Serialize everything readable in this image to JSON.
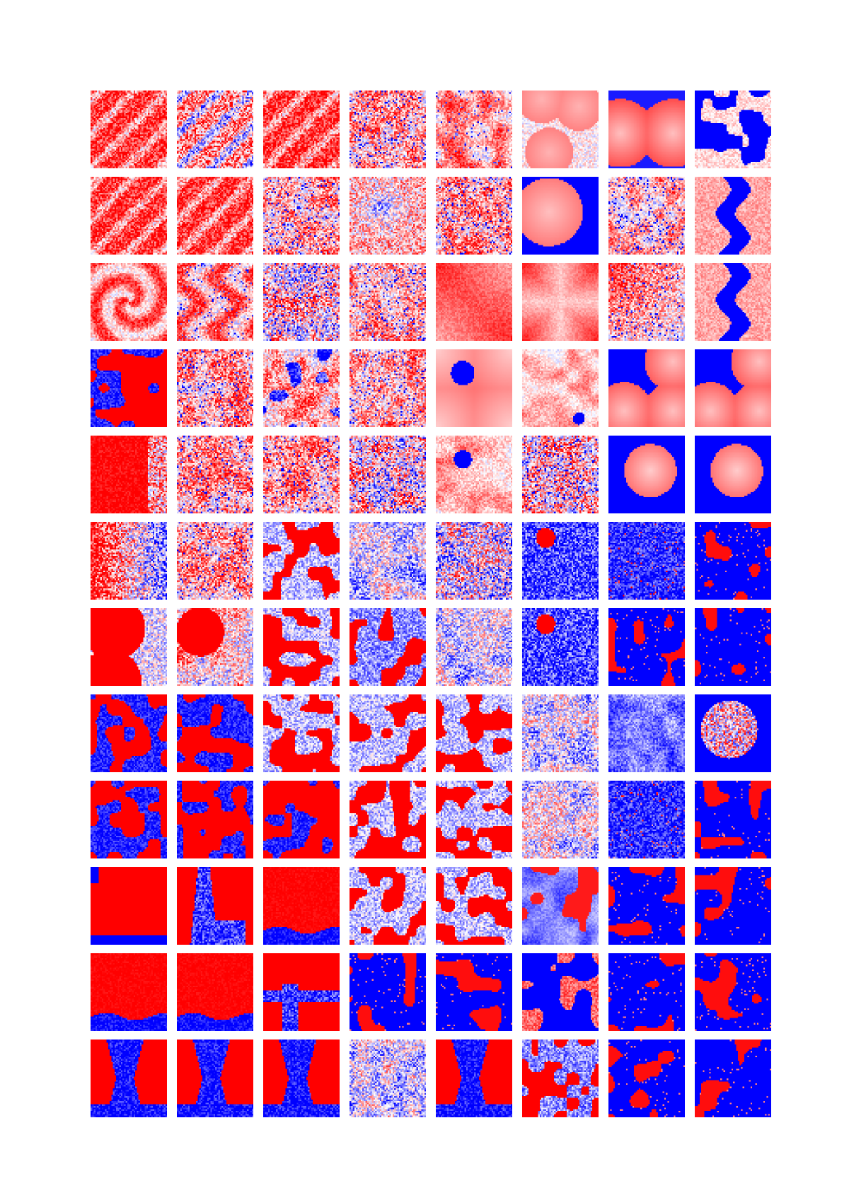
{
  "figure": {
    "rows": 12,
    "cols": 8,
    "palette": {
      "negative": "#0000ff",
      "neutral": "#ffffff",
      "positive": "#ff0000"
    },
    "tiles": [
      [
        "diagonal-stripes-red",
        "diagonal-stripes-mixed",
        "diagonal-stripes-red",
        "speckle-light",
        "blob-red-soft",
        "circles-light",
        "circles-light-blue-gaps",
        "blue-regions-light-islands"
      ],
      [
        "diagonal-stripes-red",
        "diagonal-stripes-red",
        "speckle-light",
        "speckle-blue-center",
        "speckle-light",
        "circle-light-blue-right",
        "blob-light-blue-bits",
        "blue-band-vertical"
      ],
      [
        "swirl-light",
        "swirl-red-light",
        "speckle-mixed",
        "gradient-red-speckle",
        "gradient-red",
        "gradient-red-cross",
        "corner-red-speckle",
        "blue-band-vertical"
      ],
      [
        "red-blobs-blue-veins",
        "speckle-light",
        "speckle-light-blue-spots",
        "gradient-red-speckle",
        "circles-blue-gap",
        "circles-light-blue-corner",
        "circles-blue-background",
        "circles-blue-background"
      ],
      [
        "red-left-speckle",
        "speckle-light",
        "speckle-light",
        "speckle-mixed",
        "circle-light-blue-spot",
        "speckle-mixed",
        "circle-on-blue",
        "circle-on-blue"
      ],
      [
        "red-left-blue-speckle",
        "speckle-light",
        "red-blobs-light",
        "speckle-light-blue",
        "speckle-blue",
        "blue-speckle-red-spot",
        "blue-speckle",
        "blue-with-red-spots"
      ],
      [
        "red-circles-light",
        "red-circle-speckle",
        "red-blobs-light",
        "red-blobs-blue",
        "speckle-light-blue",
        "blue-speckle-red-spot",
        "blue-with-red-spots",
        "blue-with-red-spots"
      ],
      [
        "red-blobs-blue-veins",
        "red-blobs-blue-veins",
        "red-blobs-light",
        "red-blobs-light",
        "red-blobs-light",
        "speckle-light-blue",
        "blue-soft",
        "blue-circle-speckle"
      ],
      [
        "red-blobs-blue-veins",
        "red-blobs-blue-veins",
        "red-blobs-blue-veins",
        "red-blobs-light",
        "red-blobs-light",
        "speckle-light-blue",
        "blue-speckle",
        "blue-with-red-spots"
      ],
      [
        "red-blue-corner",
        "red-blue-veins-center",
        "red-blue-bottom",
        "red-blobs-light",
        "red-blobs-light",
        "blue-light-red-spots",
        "blue-with-red-spots",
        "blue-with-red-spots"
      ],
      [
        "red-blue-bottom",
        "red-blue-bottom",
        "red-blue-cross",
        "blue-with-red-spots",
        "blue-with-red-spots",
        "red-light-spots-on-blue",
        "blue-with-red-spots",
        "blue-with-red-spots"
      ],
      [
        "red-blue-hourglass",
        "red-blue-hourglass",
        "red-blue-hourglass",
        "speckle-light-blue",
        "red-blue-hourglass",
        "red-blobs-blue",
        "blue-with-red-spots",
        "blue-with-red-spots"
      ]
    ]
  }
}
